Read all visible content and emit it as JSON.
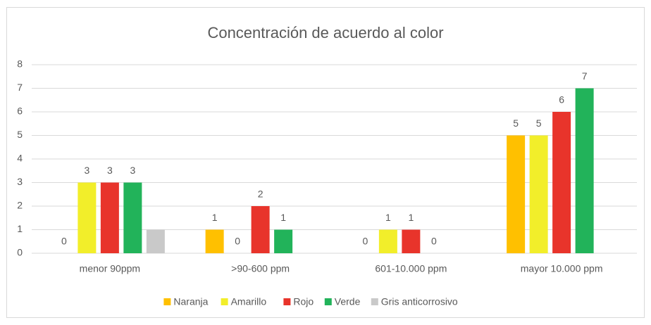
{
  "chart_data": {
    "type": "bar",
    "title": "Concentración de acuerdo al color",
    "categories": [
      "menor 90ppm",
      ">90-600 ppm",
      "601-10.000 ppm",
      "mayor 10.000 ppm"
    ],
    "series": [
      {
        "name": "Naranja",
        "color": "#ffc000",
        "values": [
          0,
          1,
          0,
          5
        ],
        "data_labels": true
      },
      {
        "name": "Amarillo",
        "color": "#f2ee2a",
        "values": [
          3,
          0,
          1,
          5
        ],
        "data_labels": true
      },
      {
        "name": "Rojo",
        "color": "#e8342b",
        "values": [
          3,
          2,
          1,
          6
        ],
        "data_labels": true
      },
      {
        "name": "Verde",
        "color": "#22b35a",
        "values": [
          3,
          1,
          0,
          7
        ],
        "data_labels": true
      },
      {
        "name": "Gris anticorrosivo",
        "color": "#c9c9c9",
        "values": [
          1,
          null,
          null,
          null
        ],
        "data_labels": false
      }
    ],
    "ylim": [
      0,
      8
    ],
    "yticks": [
      0,
      1,
      2,
      3,
      4,
      5,
      6,
      7,
      8
    ],
    "grid": true,
    "legend": "bottom"
  }
}
